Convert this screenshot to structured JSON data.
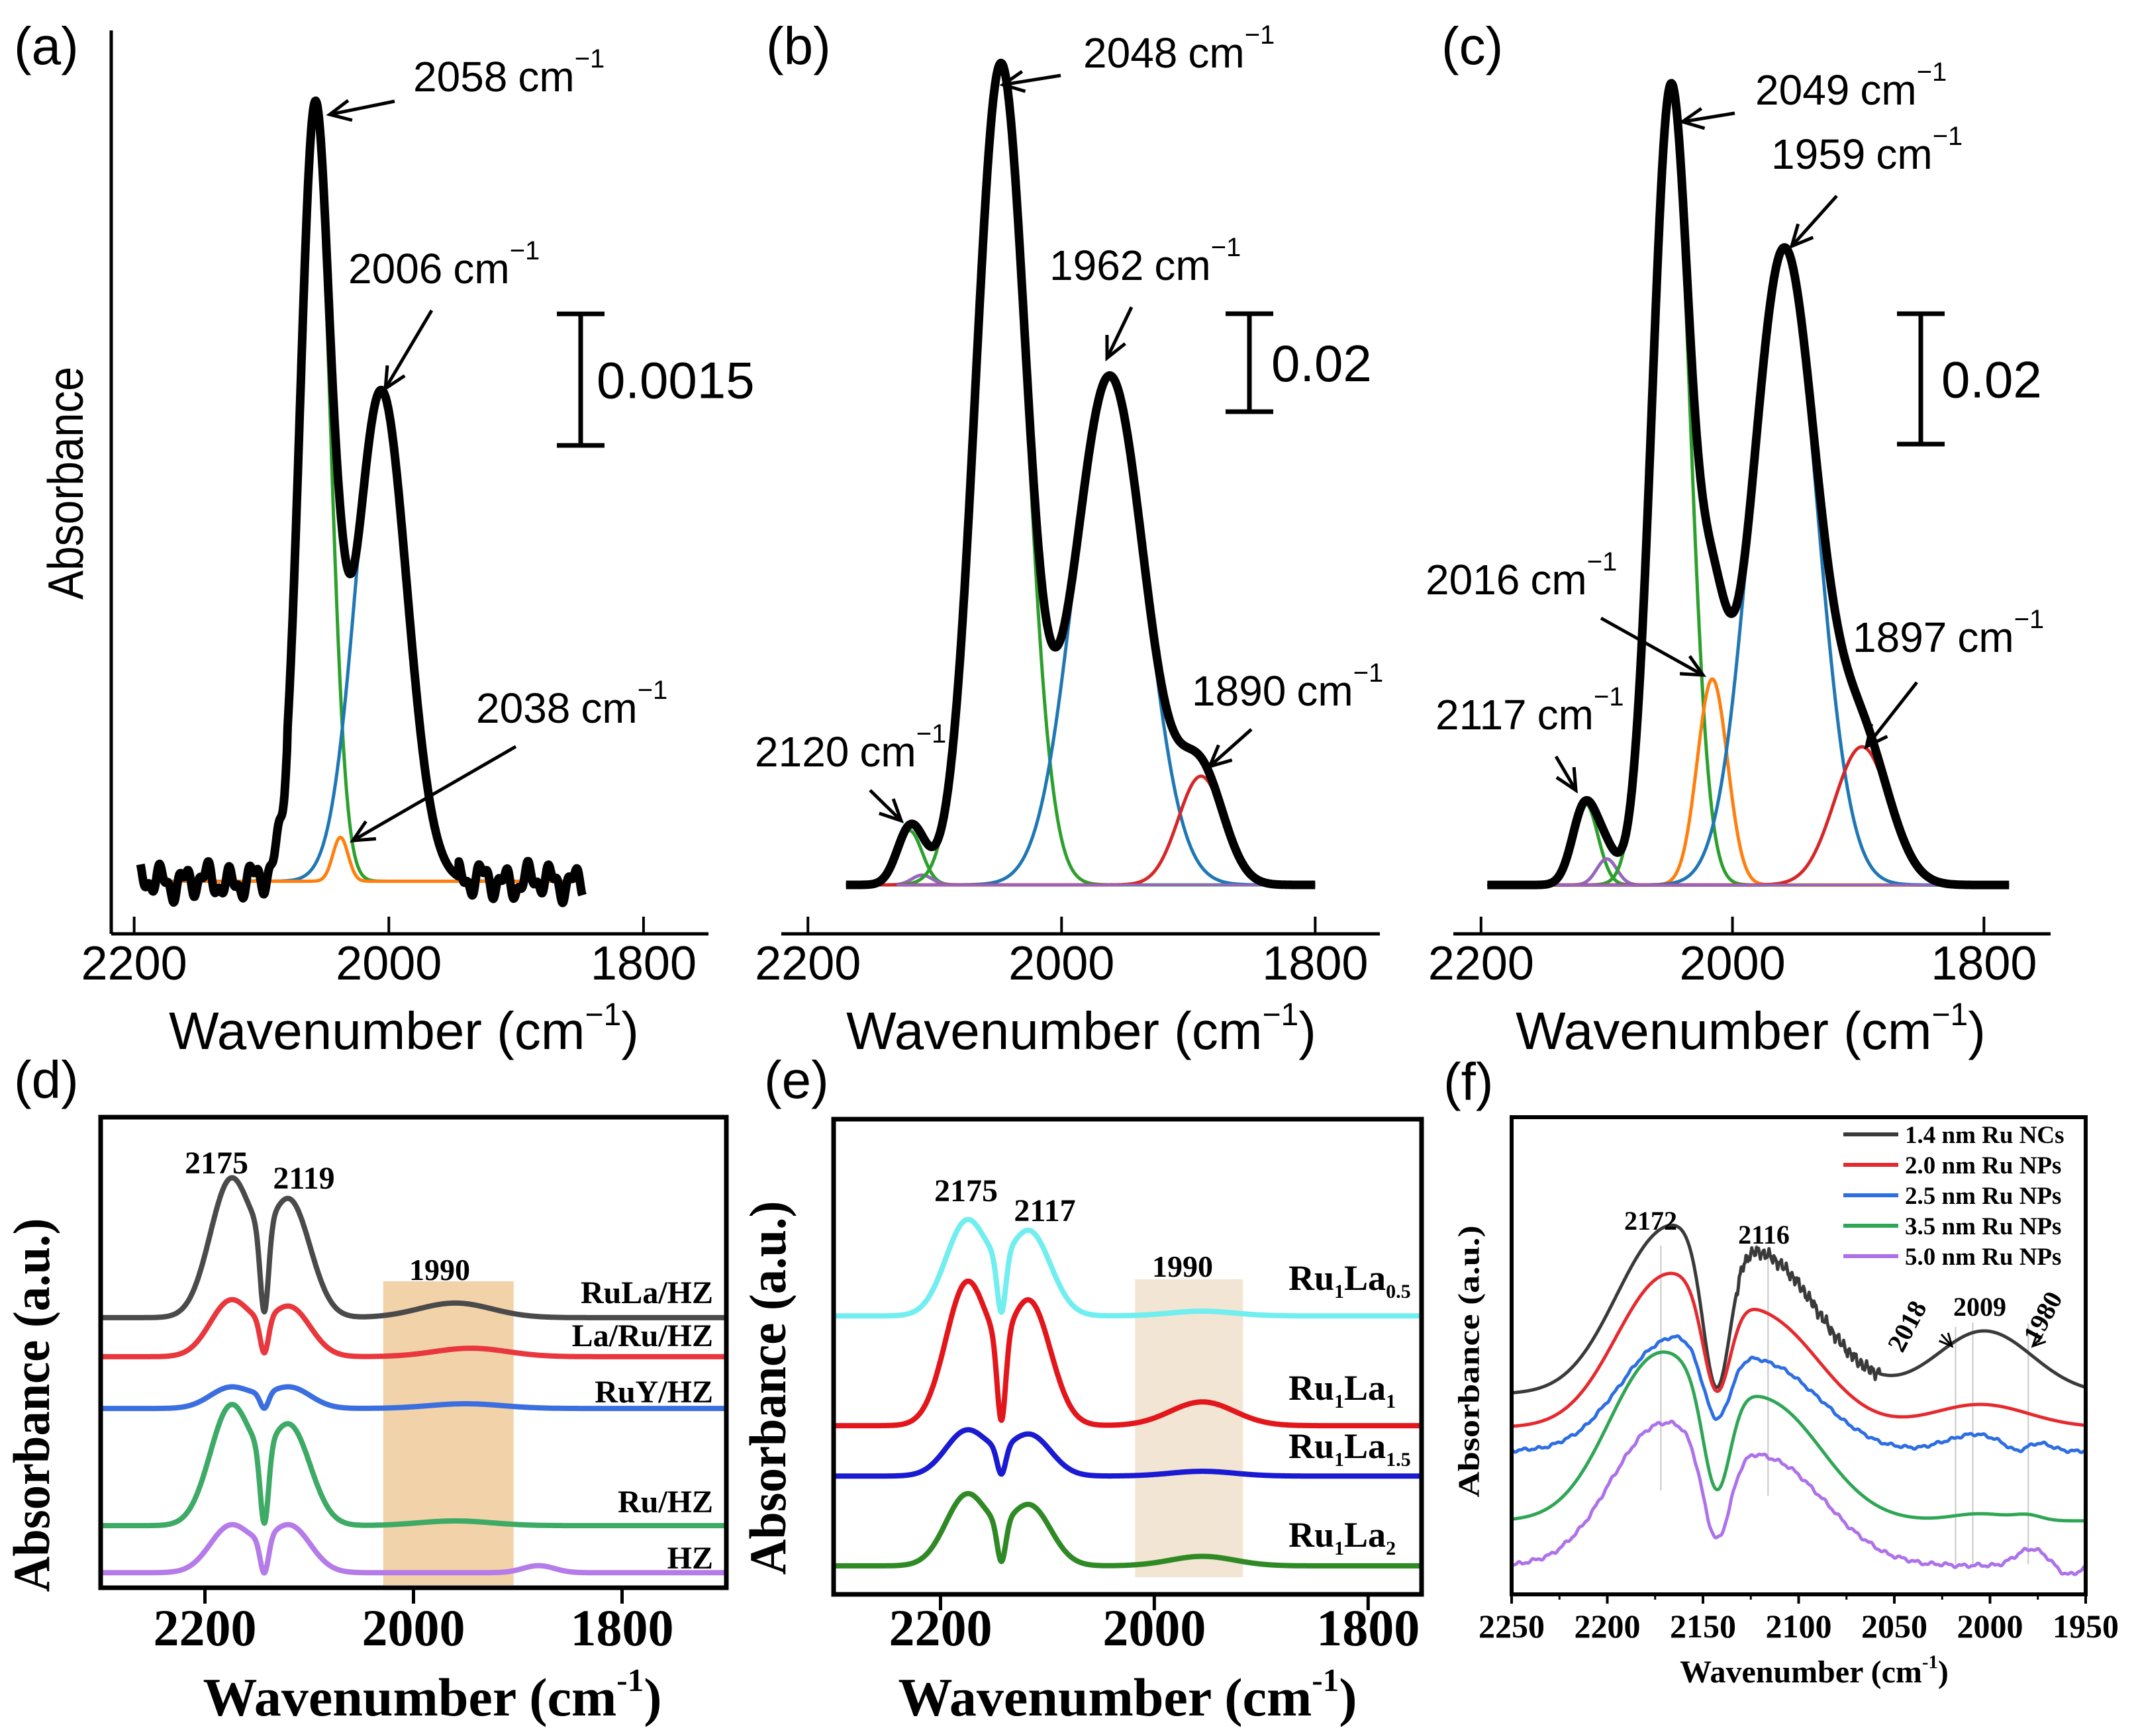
{
  "chart_data": [
    {
      "id": "a",
      "type": "line",
      "panel_label": "(a)",
      "xlabel": {
        "text": "Wavenumber (cm",
        "sup": "−1",
        "close": ")"
      },
      "ylabel": "Absorbance",
      "xlim": [
        2218,
        1749
      ],
      "ylim": [
        -0.0006,
        0.0097
      ],
      "xtick_values": [
        2200,
        2000,
        1800
      ],
      "xticks": [
        "2200",
        "2000",
        "1800"
      ],
      "scale_bar": {
        "value": 0.0015,
        "label": "0.0015"
      },
      "x_range": [
        2195,
        1848
      ],
      "components": [
        {
          "name": "2058 band",
          "center": 2058,
          "sigma": 12,
          "amp": 0.0087,
          "color": "#2ca02c"
        },
        {
          "name": "2006 band",
          "center": 2006,
          "sigma": 20,
          "amp": 0.0056,
          "color": "#1f77b4"
        },
        {
          "name": "2038 band",
          "center": 2038,
          "sigma": 6,
          "amp": 0.0005,
          "color": "#ff7f0e"
        }
      ],
      "total": {
        "color": "#000000",
        "noise": {
          "amp": 0.00025,
          "period_cm": 18,
          "ranges": [
            [
              2195,
              2080
            ],
            [
              1945,
              1848
            ]
          ]
        }
      },
      "annotations": [
        {
          "value": "2058",
          "unit": "cm",
          "sup": "−1"
        },
        {
          "value": "2006",
          "unit": "cm",
          "sup": "−1"
        },
        {
          "value": "2038",
          "unit": "cm",
          "sup": "−1"
        }
      ]
    },
    {
      "id": "b",
      "type": "line",
      "panel_label": "(b)",
      "xlabel": {
        "text": "Wavenumber (cm",
        "sup": "−1",
        "close": ")"
      },
      "xlim": [
        2221,
        1749
      ],
      "ylim": [
        -0.01,
        0.1745
      ],
      "xtick_values": [
        2200,
        2000,
        1800
      ],
      "xticks": [
        "2200",
        "2000",
        "1800"
      ],
      "scale_bar": {
        "value": 0.02,
        "label": "0.02"
      },
      "x_range": [
        2170,
        1800
      ],
      "components": [
        {
          "name": "2120 band",
          "center": 2120,
          "sigma": 10,
          "amp": 0.0111,
          "color": "#2ca02c"
        },
        {
          "name": "2110 band",
          "center": 2110,
          "sigma": 8,
          "amp": 0.002,
          "color": "#9467bd"
        },
        {
          "name": "2048 band",
          "center": 2048,
          "sigma": 20,
          "amp": 0.1669,
          "color": "#2ca02c"
        },
        {
          "name": "1962 band",
          "center": 1962,
          "sigma": 28,
          "amp": 0.104,
          "color": "#1f77b4"
        },
        {
          "name": "1890 band",
          "center": 1890,
          "sigma": 18,
          "amp": 0.0222,
          "color": "#d62728"
        }
      ],
      "total": {
        "color": "#000000"
      },
      "annotations": [
        {
          "value": "2048",
          "unit": "cm",
          "sup": "−1"
        },
        {
          "value": "1962",
          "unit": "cm",
          "sup": "−1"
        },
        {
          "value": "1890",
          "unit": "cm",
          "sup": "−1"
        },
        {
          "value": "2120",
          "unit": "cm",
          "sup": "−1"
        }
      ]
    },
    {
      "id": "c",
      "type": "line",
      "panel_label": "(c)",
      "xlabel": {
        "text": "Wavenumber (cm",
        "sup": "−1",
        "close": ")"
      },
      "xlim": [
        2222,
        1747
      ],
      "ylim": [
        -0.0075,
        0.1311
      ],
      "xtick_values": [
        2200,
        2000,
        1800
      ],
      "xticks": [
        "2200",
        "2000",
        "1800"
      ],
      "scale_bar": {
        "value": 0.02,
        "label": "0.02"
      },
      "x_range": [
        2195,
        1780
      ],
      "components": [
        {
          "name": "2117 band",
          "center": 2117,
          "sigma": 10,
          "amp": 0.0125,
          "color": "#2ca02c"
        },
        {
          "name": "2100 band",
          "center": 2100,
          "sigma": 8,
          "amp": 0.004,
          "color": "#9467bd"
        },
        {
          "name": "2049 band",
          "center": 2049,
          "sigma": 15,
          "amp": 0.122,
          "color": "#2ca02c"
        },
        {
          "name": "2016 band",
          "center": 2016,
          "sigma": 12,
          "amp": 0.0316,
          "color": "#ff7f0e"
        },
        {
          "name": "1959 band",
          "center": 1959,
          "sigma": 26,
          "amp": 0.0974,
          "color": "#1f77b4"
        },
        {
          "name": "1897 band",
          "center": 1897,
          "sigma": 22,
          "amp": 0.0212,
          "color": "#d62728"
        }
      ],
      "total": {
        "color": "#000000"
      },
      "annotations": [
        {
          "value": "2049",
          "unit": "cm",
          "sup": "−1"
        },
        {
          "value": "1959",
          "unit": "cm",
          "sup": "−1"
        },
        {
          "value": "2016",
          "unit": "cm",
          "sup": "−1"
        },
        {
          "value": "1897",
          "unit": "cm",
          "sup": "−1"
        },
        {
          "value": "2117",
          "unit": "cm",
          "sup": "−1"
        }
      ]
    },
    {
      "id": "d",
      "type": "line",
      "panel_label": "(d)",
      "xlabel": {
        "text": "Wavenumber (cm",
        "sup": "-1",
        "close": ")"
      },
      "ylabel": "Absorbance (a.u.)",
      "xlim": [
        2300,
        1700
      ],
      "ylim": [
        0,
        100
      ],
      "xtick_values": [
        2200,
        2000,
        1800
      ],
      "xticks": [
        "2200",
        "2000",
        "1800"
      ],
      "shaded": {
        "range": [
          2029,
          1904
        ],
        "label": "1990",
        "color": "#f2d2a9"
      },
      "peak_labels": [
        "2175",
        "2119"
      ],
      "series": [
        {
          "name": "RuLa/HZ",
          "color": "#4a4a4a",
          "base": 57.4,
          "components": [
            [
              2175,
              20,
              29.2
            ],
            [
              2119,
              20,
              24.7
            ],
            [
              2143,
              4,
              -18.9
            ],
            [
              1960,
              35,
              3.1
            ]
          ]
        },
        {
          "name": "La/Ru/HZ",
          "color": "#e8383d",
          "base": 49.1,
          "components": [
            [
              2175,
              20,
              11.9
            ],
            [
              2119,
              20,
              10.5
            ],
            [
              2143,
              4,
              -7.6
            ],
            [
              1945,
              35,
              1.8
            ]
          ]
        },
        {
          "name": "RuY/HZ",
          "color": "#3b6fe0",
          "base": 38.1,
          "components": [
            [
              2175,
              20,
              4.5
            ],
            [
              2119,
              20,
              4.5
            ],
            [
              2143,
              4,
              -3.4
            ],
            [
              1950,
              35,
              1.0
            ]
          ]
        },
        {
          "name": "Ru/HZ",
          "color": "#3daa66",
          "base": 13.2,
          "components": [
            [
              2175,
              20,
              25.3
            ],
            [
              2119,
              20,
              21.1
            ],
            [
              2143,
              4,
              -16.8
            ],
            [
              1960,
              35,
              1.0
            ]
          ]
        },
        {
          "name": "HZ",
          "color": "#b57be8",
          "base": 3.2,
          "components": [
            [
              2175,
              20,
              10
            ],
            [
              2119,
              20,
              10
            ],
            [
              2143,
              4,
              -7.7
            ],
            [
              1880,
              15,
              1.5
            ]
          ]
        }
      ]
    },
    {
      "id": "e",
      "type": "line",
      "panel_label": "(e)",
      "xlabel": {
        "text": "Wavenumber (cm",
        "sup": "-1",
        "close": ")"
      },
      "ylabel": "Absorbance (a.u.)",
      "xlim": [
        2300,
        1750
      ],
      "ylim": [
        0,
        100
      ],
      "xtick_values": [
        2200,
        2000,
        1800
      ],
      "xticks": [
        "2200",
        "2000",
        "1800"
      ],
      "shaded": {
        "range": [
          2018,
          1917
        ],
        "label": "1990",
        "color": "#f3e5d3"
      },
      "peak_labels": [
        "2175",
        "2117"
      ],
      "series": [
        {
          "label_parts": [
            "Ru",
            "1",
            "La",
            "0.5"
          ],
          "color": "#71eef0",
          "base": 58.6,
          "components": [
            [
              2175,
              20,
              20
            ],
            [
              2117,
              20,
              17.7
            ],
            [
              2143,
              4,
              -12.4
            ],
            [
              1955,
              30,
              1
            ]
          ]
        },
        {
          "label_parts": [
            "Ru",
            "1",
            "La",
            "1"
          ],
          "color": "#e3161b",
          "base": 35.5,
          "components": [
            [
              2175,
              20,
              30
            ],
            [
              2117,
              20,
              26
            ],
            [
              2143,
              4,
              -18.4
            ],
            [
              1955,
              30,
              5
            ]
          ]
        },
        {
          "label_parts": [
            "Ru",
            "1",
            "La",
            "1.5"
          ],
          "color": "#1a1ad2",
          "base": 24.9,
          "components": [
            [
              2175,
              20,
              9.6
            ],
            [
              2117,
              20,
              8.7
            ],
            [
              2143,
              4,
              -6
            ],
            [
              1955,
              30,
              1
            ]
          ]
        },
        {
          "label_parts": [
            "Ru",
            "1",
            "La",
            "2"
          ],
          "color": "#2f8a25",
          "base": 6,
          "components": [
            [
              2175,
              20,
              15
            ],
            [
              2117,
              20,
              12.7
            ],
            [
              2143,
              4,
              -8.7
            ],
            [
              1955,
              30,
              2
            ]
          ]
        }
      ]
    },
    {
      "id": "f",
      "type": "line",
      "panel_label": "(f)",
      "xlabel": {
        "text": "Wavenumber (cm",
        "sup": "-1",
        "close": ")"
      },
      "ylabel": "Absorbance (a.u.)",
      "xlim": [
        2250,
        1950
      ],
      "ylim": [
        0,
        100
      ],
      "xtick_values": [
        2250,
        2200,
        2150,
        2100,
        2050,
        2000,
        1950
      ],
      "xticks": [
        "2250",
        "2200",
        "2150",
        "2100",
        "2050",
        "2000",
        "1950"
      ],
      "reference_lines": [
        2172,
        2116,
        2018,
        2009,
        1980
      ],
      "peak_labels": [
        "2172",
        "2116",
        "2009",
        "2018",
        "1980"
      ],
      "legend_position": "top-right",
      "series": [
        {
          "name": "1.4 nm Ru NCs",
          "color": "#3a3a3a",
          "base": 42,
          "components": [
            [
              2172,
              25,
              31
            ],
            [
              2116,
              28,
              26.5
            ],
            [
              2143,
              7,
              -31.1
            ],
            [
              2003,
              25,
              13.2
            ]
          ],
          "noise": {
            "amp": 1.6,
            "period_cm": 3,
            "ranges": [
              [
                2132,
                2058
              ]
            ]
          }
        },
        {
          "name": "2.0 nm Ru NPs",
          "color": "#e52a2f",
          "base": 35,
          "components": [
            [
              2172,
              25,
              28.8
            ],
            [
              2116,
              28,
              21.5
            ],
            [
              2143,
              7,
              -20.6
            ],
            [
              2005,
              25,
              4.8
            ]
          ]
        },
        {
          "name": "2.5 nm Ru NPs",
          "color": "#2d6ee3",
          "base": 30,
          "components": [
            [
              2170,
              25,
              21
            ],
            [
              2115,
              28,
              16.7
            ],
            [
              2143,
              7,
              -15
            ],
            [
              2008,
              15,
              3.5
            ],
            [
              1975,
              7,
              1.5
            ],
            [
              1986,
              5,
              -1.5
            ]
          ],
          "noise": {
            "amp": 0.4,
            "period_cm": 8,
            "ranges": [
              [
                2250,
                1950
              ]
            ]
          }
        },
        {
          "name": "3.5 nm Ru NPs",
          "color": "#2fa655",
          "base": 15.4,
          "components": [
            [
              2175,
              25,
              32.6
            ],
            [
              2115,
              28,
              23.6
            ],
            [
              2143,
              7,
              -22.1
            ],
            [
              2005,
              15,
              1.5
            ],
            [
              1980,
              7,
              1
            ]
          ]
        },
        {
          "name": "5.0 nm Ru NPs",
          "color": "#ad72ea",
          "base": 6,
          "components": [
            [
              2175,
              25,
              26.6
            ],
            [
              2115,
              30,
              21.2
            ],
            [
              2143,
              7,
              -19.8
            ],
            [
              1978,
              8,
              3.6
            ],
            [
              1960,
              6,
              -2
            ]
          ],
          "noise": {
            "amp": 0.5,
            "period_cm": 8,
            "ranges": [
              [
                2250,
                1950
              ]
            ]
          }
        }
      ]
    }
  ]
}
